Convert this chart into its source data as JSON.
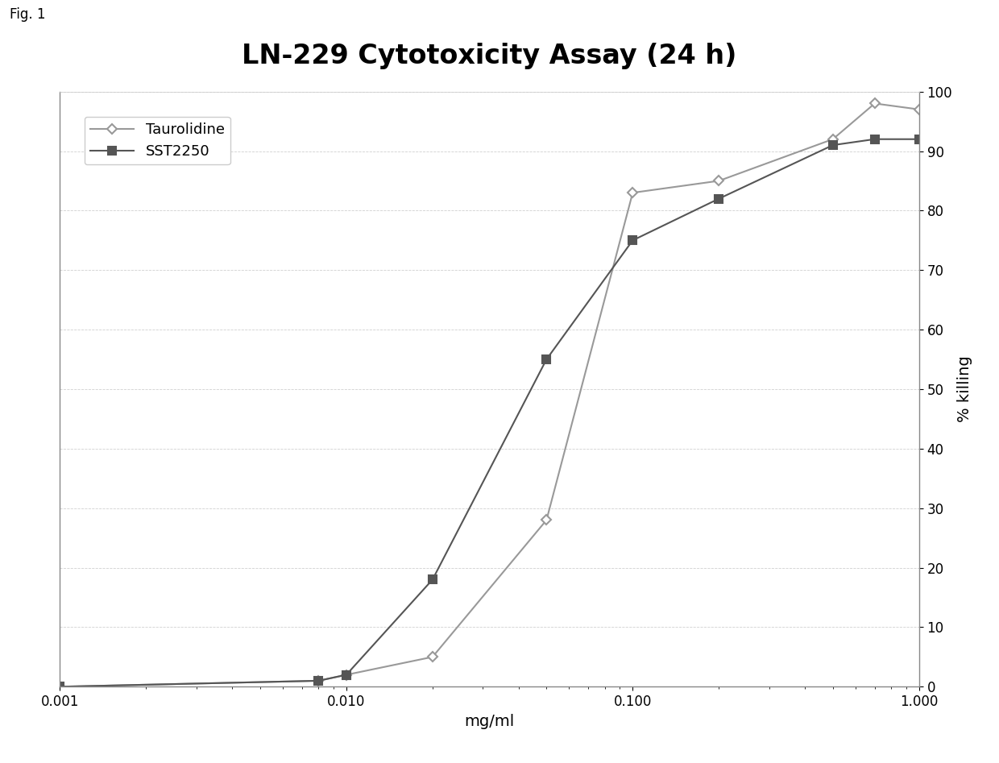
{
  "title": "LN-229 Cytotoxicity Assay (24 h)",
  "xlabel": "mg/ml",
  "ylabel": "% killing",
  "fig_label": "Fig. 1",
  "taurolidine": {
    "x": [
      0.001,
      0.008,
      0.01,
      0.02,
      0.05,
      0.1,
      0.2,
      0.5,
      0.7,
      1.0
    ],
    "y": [
      0,
      1,
      2,
      5,
      28,
      83,
      85,
      92,
      98,
      97
    ],
    "label": "Taurolidine",
    "color": "#999999",
    "marker": "D",
    "linestyle": "-"
  },
  "sst2250": {
    "x": [
      0.001,
      0.008,
      0.01,
      0.02,
      0.05,
      0.1,
      0.2,
      0.5,
      0.7,
      1.0
    ],
    "y": [
      0,
      1,
      2,
      18,
      55,
      75,
      82,
      91,
      92,
      92
    ],
    "label": "SST2250",
    "color": "#555555",
    "marker": "s",
    "linestyle": "-"
  },
  "xlim": [
    0.001,
    1.0
  ],
  "ylim": [
    0,
    100
  ],
  "yticks": [
    0,
    10,
    20,
    30,
    40,
    50,
    60,
    70,
    80,
    90,
    100
  ],
  "xticks": [
    0.001,
    0.01,
    0.1,
    1.0
  ],
  "xtick_labels": [
    "0.001",
    "0.010",
    "0.100",
    "1.000"
  ],
  "background_color": "#ffffff",
  "grid_color": "#bbbbbb",
  "title_fontsize": 24,
  "axis_label_fontsize": 14,
  "tick_fontsize": 12,
  "legend_fontsize": 13
}
